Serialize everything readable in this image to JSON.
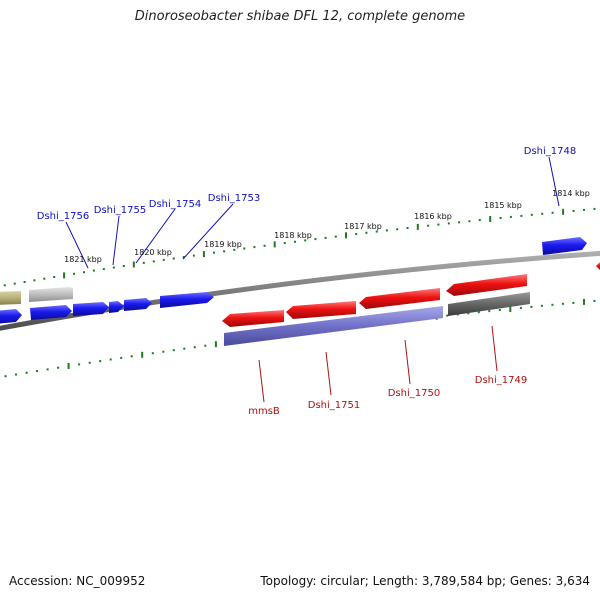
{
  "title": "Dinoroseobacter shibae DFL 12, complete genome",
  "footer": {
    "accession": "Accession: NC_009952",
    "summary": "Topology: circular; Length: 3,789,584 bp; Genes: 3,634"
  },
  "colors": {
    "forward_label": "#1010c0",
    "reverse_label": "#b01010",
    "forward_cds": "#1a1aee",
    "reverse_cds": "#ee1111",
    "feature_purple": "#7070c8",
    "feature_gray": "#666666",
    "feature_lightgray": "#bdbdbd",
    "feature_olive": "#b8b07a",
    "backbone": "#7a7a7a",
    "ticks": "#1f7a1f"
  },
  "scale_ticks": [
    "1814 kbp",
    "1815 kbp",
    "1816 kbp",
    "1817 kbp",
    "1818 kbp",
    "1819 kbp",
    "1820 kbp",
    "1821 kbp"
  ],
  "forward_genes": [
    "Dshi_1748",
    "Dshi_1753",
    "Dshi_1754",
    "Dshi_1755",
    "Dshi_1756"
  ],
  "reverse_genes": [
    "Dshi_1749",
    "Dshi_1750",
    "Dshi_1751",
    "mmsB"
  ]
}
